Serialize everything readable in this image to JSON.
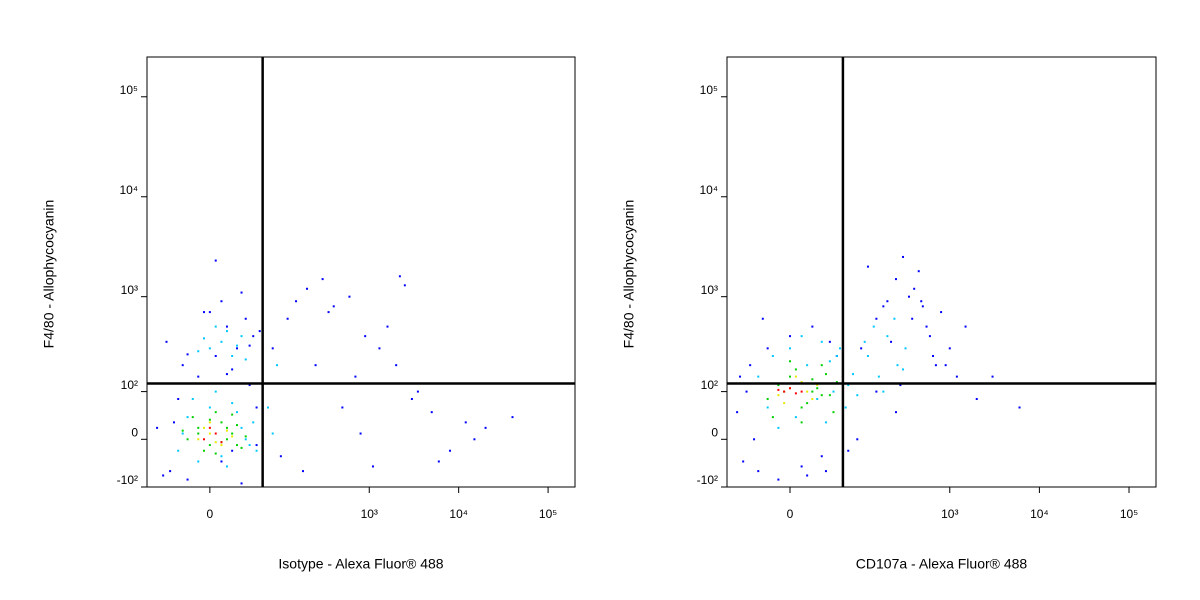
{
  "chart_data": [
    {
      "type": "scatter",
      "xscale": "biexponential",
      "yscale": "biexponential",
      "xlabel": "Isotype - Alexa Fluor® 488",
      "ylabel": "F4/80 - Allophycocyanin",
      "xlim": [
        -80,
        200000
      ],
      "ylim": [
        -100,
        250000
      ],
      "xticks": [
        0,
        {
          "value": 1000,
          "label": "10³"
        },
        {
          "value": 10000,
          "label": "10⁴"
        },
        {
          "value": 100000,
          "label": "10⁵"
        }
      ],
      "yticks": [
        {
          "value": -100,
          "label": "-10²"
        },
        0,
        {
          "value": 100,
          "label": "10²"
        },
        {
          "value": 1000,
          "label": "10³"
        },
        {
          "value": 10000,
          "label": "10⁴"
        },
        {
          "value": 100000,
          "label": "10⁵"
        }
      ],
      "gates": {
        "x": 60,
        "y": 125
      },
      "series": [
        {
          "color": "#0000ff",
          "x": [
            -60,
            -40,
            -20,
            10,
            30,
            50,
            -30,
            20,
            40,
            -10,
            5,
            25,
            45,
            -45,
            15,
            35,
            -25,
            55,
            0,
            -50,
            80,
            120,
            150,
            200,
            300,
            400,
            600,
            900,
            1300,
            2000,
            2500,
            3500,
            5000,
            8000,
            12000,
            20000,
            40000,
            100,
            250,
            500,
            700,
            1100,
            1600,
            3000,
            6000,
            15000,
            180,
            350,
            800,
            2200,
            10,
            30,
            -20,
            40,
            5,
            20,
            -35,
            50,
            15,
            -5
          ],
          "values": [
            20,
            -60,
            -80,
            -40,
            -90,
            60,
            80,
            -20,
            120,
            150,
            250,
            300,
            400,
            350,
            500,
            600,
            200,
            450,
            700,
            -70,
            300,
            600,
            900,
            1200,
            1500,
            800,
            1000,
            400,
            300,
            200,
            1300,
            100,
            50,
            -20,
            30,
            20,
            40,
            -30,
            200,
            60,
            150,
            -50,
            500,
            80,
            -40,
            0,
            -60,
            700,
            10,
            1600,
            900,
            1100,
            260,
            320,
            2300,
            180,
            30,
            -10,
            160,
            700
          ]
        },
        {
          "color": "#00c8ff",
          "x": [
            -30,
            -20,
            -10,
            0,
            10,
            20,
            30,
            40,
            -25,
            -15,
            5,
            15,
            25,
            35,
            45,
            0,
            10,
            20,
            30,
            -10,
            15,
            25,
            5,
            35,
            -5,
            60,
            80,
            50,
            70,
            90
          ],
          "values": [
            -20,
            40,
            -40,
            60,
            -30,
            70,
            20,
            -10,
            10,
            80,
            100,
            -50,
            50,
            0,
            30,
            300,
            350,
            250,
            400,
            280,
            450,
            320,
            500,
            230,
            380,
            40,
            10,
            -20,
            60,
            200
          ]
        },
        {
          "color": "#00d000",
          "x": [
            -20,
            -10,
            0,
            10,
            20,
            30,
            -15,
            -5,
            5,
            15,
            25,
            -25,
            0,
            10,
            20,
            -10,
            5,
            15,
            25,
            35
          ],
          "values": [
            0,
            20,
            -10,
            30,
            10,
            -15,
            40,
            -20,
            50,
            0,
            25,
            15,
            35,
            -5,
            45,
            10,
            -25,
            20,
            -10,
            5
          ]
        },
        {
          "color": "#e8e800",
          "x": [
            -10,
            0,
            5,
            15,
            -5,
            10,
            20,
            0
          ],
          "values": [
            0,
            10,
            -5,
            15,
            20,
            -10,
            5,
            30
          ]
        },
        {
          "color": "#ff0000",
          "x": [
            -5,
            5,
            0,
            10
          ],
          "values": [
            0,
            10,
            20,
            -5
          ]
        }
      ]
    },
    {
      "type": "scatter",
      "xscale": "biexponential",
      "yscale": "biexponential",
      "xlabel": "CD107a - Alexa Fluor® 488",
      "ylabel": "F4/80 - Allophycocyanin",
      "xlim": [
        -80,
        200000
      ],
      "ylim": [
        -100,
        250000
      ],
      "xticks": [
        0,
        {
          "value": 1000,
          "label": "10³"
        },
        {
          "value": 10000,
          "label": "10⁴"
        },
        {
          "value": 100000,
          "label": "10⁵"
        }
      ],
      "yticks": [
        {
          "value": -100,
          "label": "-10²"
        },
        0,
        {
          "value": 100,
          "label": "10²"
        },
        {
          "value": 1000,
          "label": "10³"
        },
        {
          "value": 10000,
          "label": "10⁴"
        },
        {
          "value": 100000,
          "label": "10⁵"
        }
      ],
      "gates": {
        "x": 60,
        "y": 125
      },
      "series": [
        {
          "color": "#0000ff",
          "x": [
            -60,
            -50,
            -40,
            -30,
            -20,
            -10,
            0,
            10,
            20,
            30,
            40,
            50,
            60,
            -45,
            -35,
            100,
            150,
            200,
            250,
            300,
            400,
            500,
            600,
            700,
            800,
            1000,
            1200,
            150,
            250,
            350,
            450,
            550,
            650,
            120,
            180,
            220,
            280,
            380,
            480,
            900,
            2000,
            3000,
            6000,
            1500,
            -55,
            70,
            90,
            -25,
            15,
            35
          ],
          "values": [
            50,
            -40,
            200,
            -60,
            300,
            -80,
            400,
            -50,
            500,
            -30,
            350,
            250,
            150,
            100,
            0,
            300,
            600,
            900,
            1500,
            2500,
            1200,
            800,
            400,
            200,
            700,
            300,
            150,
            100,
            50,
            1000,
            1800,
            500,
            250,
            2000,
            800,
            350,
            120,
            600,
            900,
            200,
            80,
            150,
            60,
            500,
            150,
            -20,
            0,
            600,
            -70,
            -60
          ]
        },
        {
          "color": "#00c8ff",
          "x": [
            -30,
            -15,
            0,
            15,
            30,
            45,
            60,
            -20,
            10,
            25,
            40,
            55,
            70,
            80,
            120,
            160,
            200,
            260,
            320,
            140,
            180,
            240,
            300,
            110,
            -10,
            5,
            35,
            50,
            65,
            90
          ],
          "values": [
            150,
            250,
            300,
            200,
            350,
            100,
            180,
            60,
            400,
            80,
            220,
            300,
            120,
            160,
            250,
            150,
            400,
            200,
            300,
            500,
            100,
            600,
            180,
            350,
            20,
            40,
            30,
            250,
            60,
            90
          ]
        },
        {
          "color": "#00d000",
          "x": [
            -20,
            -10,
            0,
            10,
            20,
            30,
            40,
            50,
            -15,
            5,
            15,
            25,
            35,
            45,
            0,
            10,
            20,
            30,
            -5,
            60
          ],
          "values": [
            80,
            120,
            150,
            60,
            100,
            200,
            90,
            130,
            40,
            180,
            70,
            110,
            160,
            50,
            220,
            30,
            140,
            90,
            100,
            120
          ]
        },
        {
          "color": "#e8e800",
          "x": [
            -10,
            0,
            10,
            20,
            5,
            15,
            -5,
            25
          ],
          "values": [
            90,
            110,
            130,
            80,
            150,
            100,
            70,
            120
          ]
        },
        {
          "color": "#ff0000",
          "x": [
            -5,
            0,
            5,
            -10,
            10
          ],
          "values": [
            100,
            110,
            95,
            105,
            100
          ]
        }
      ]
    }
  ]
}
